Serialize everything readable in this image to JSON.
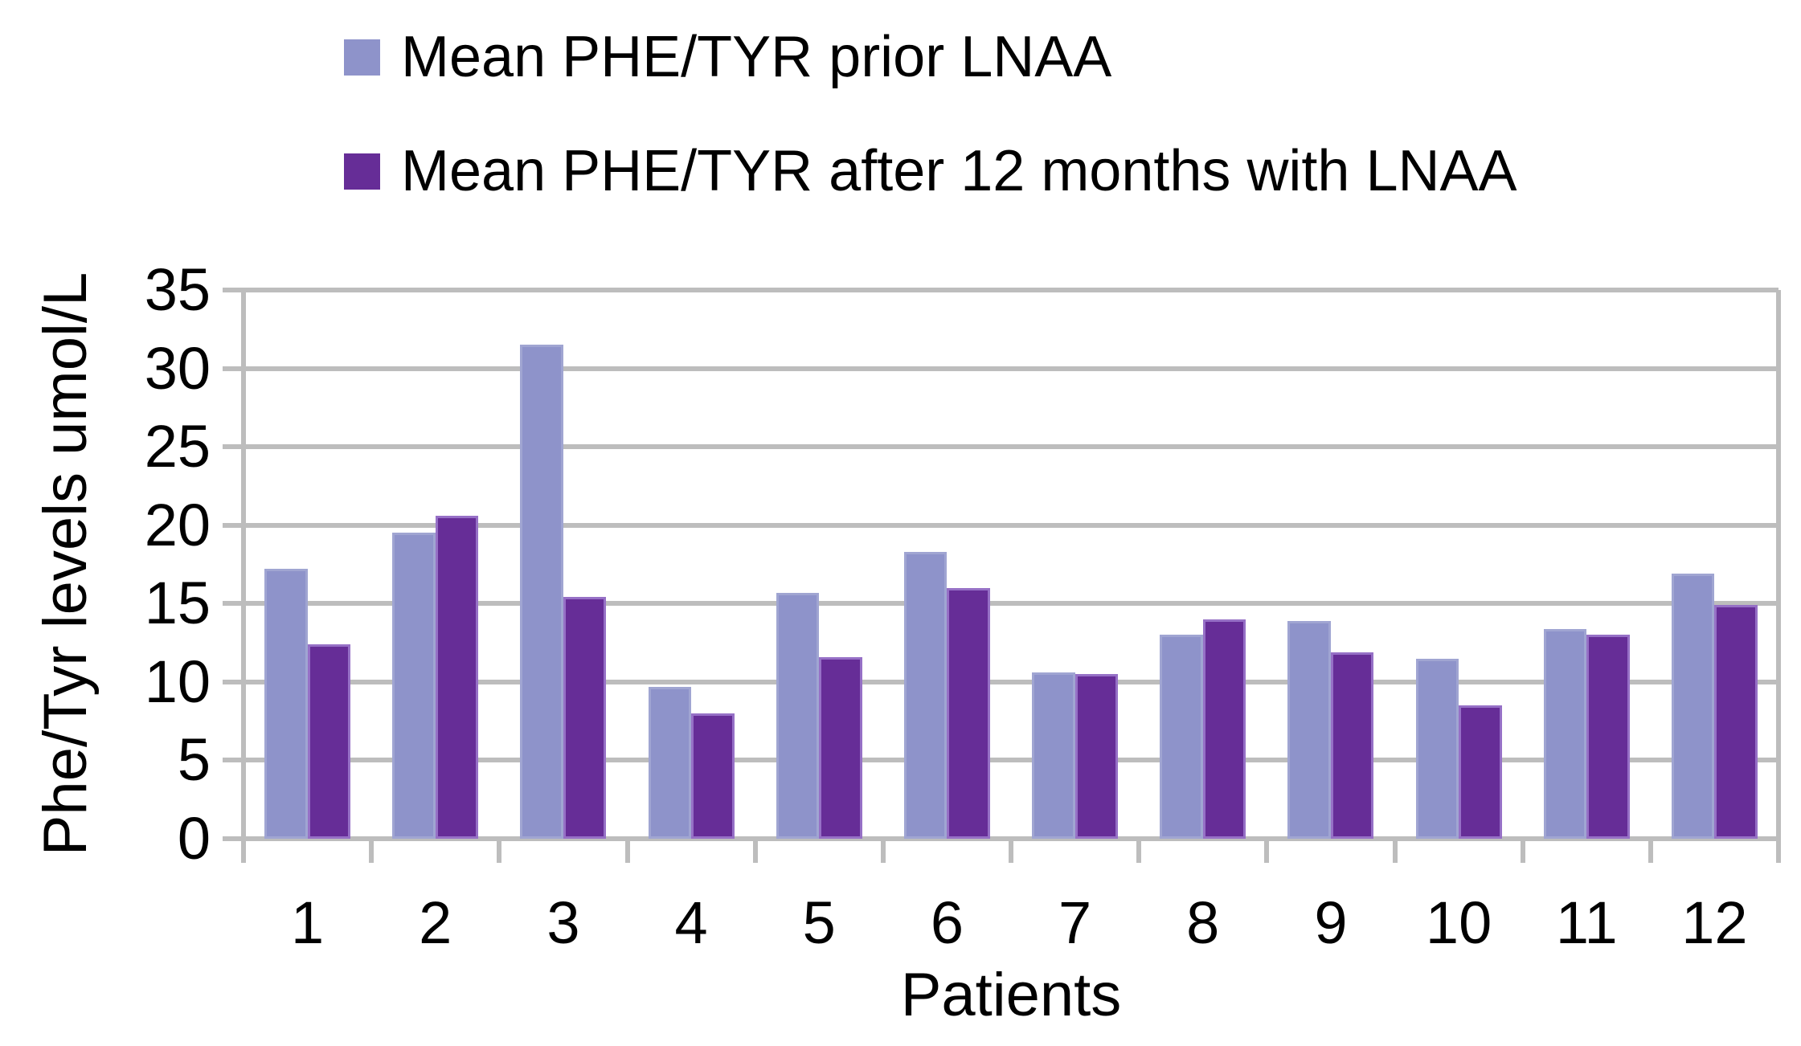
{
  "figure": {
    "background": "#ffffff",
    "text_color": "#000000",
    "gridline_color": "#BDBDBD"
  },
  "legend": {
    "position": "top-left",
    "items": [
      {
        "label": "Mean PHE/TYR prior LNAA",
        "color": "#8E93CA"
      },
      {
        "label": "Mean PHE/TYR after 12 months with LNAA",
        "color": "#662D97"
      }
    ]
  },
  "chart_data": {
    "type": "bar",
    "categories": [
      "1",
      "2",
      "3",
      "4",
      "5",
      "6",
      "7",
      "8",
      "9",
      "10",
      "11",
      "12"
    ],
    "series": [
      {
        "name": "Mean PHE/TYR prior LNAA",
        "color": "#8E93CA",
        "border_color": "#A0A5D2",
        "values": [
          17.2,
          19.5,
          31.5,
          9.7,
          15.7,
          18.3,
          10.6,
          13.0,
          13.9,
          11.5,
          13.4,
          16.9
        ]
      },
      {
        "name": "Mean PHE/TYR after 12 months with LNAA",
        "color": "#662D97",
        "border_color": "#9670C6",
        "values": [
          12.4,
          20.6,
          15.4,
          8.0,
          11.6,
          16.0,
          10.5,
          14.0,
          11.9,
          8.5,
          13.0,
          14.9
        ]
      }
    ],
    "title": "",
    "xlabel": "Patients",
    "ylabel": "Phe/Tyr levels umol/L",
    "ylim": [
      0,
      35
    ],
    "yticks": [
      0,
      5,
      10,
      15,
      20,
      25,
      30,
      35
    ],
    "grid": "horizontal gridlines at every y tick, gray",
    "legend_position": "top-left, stacked vertically"
  }
}
